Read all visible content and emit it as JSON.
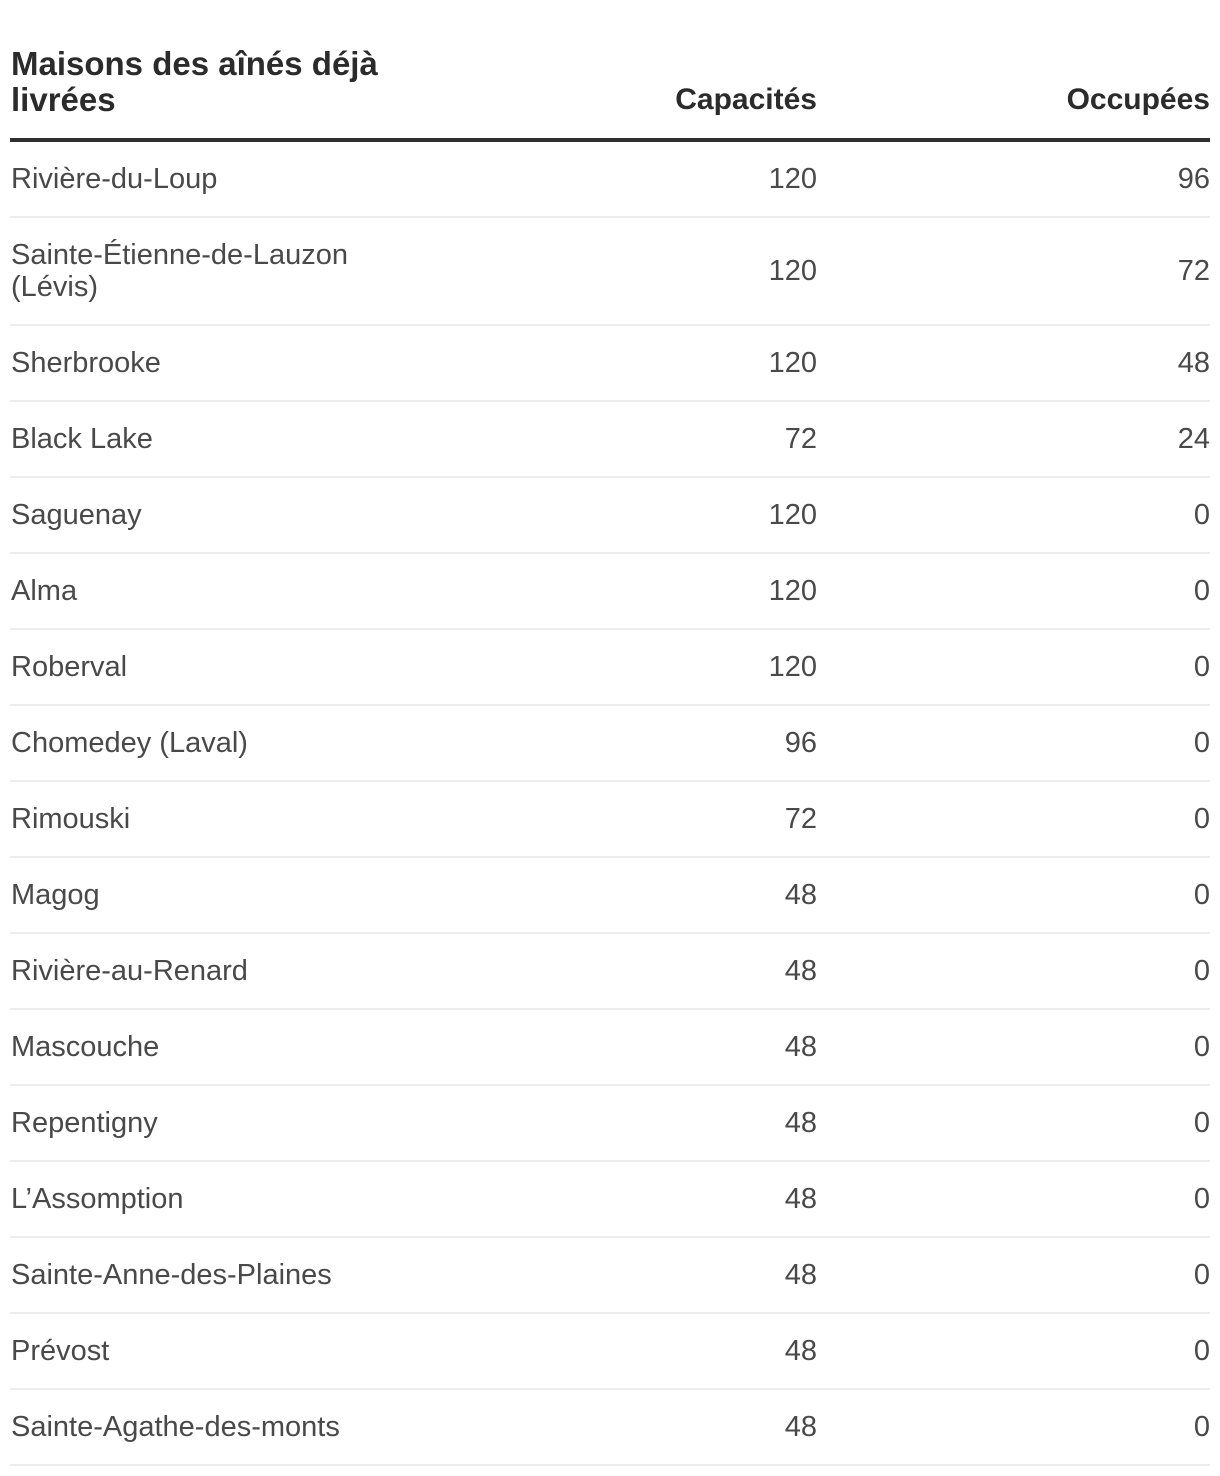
{
  "page": {
    "background": "#ffffff"
  },
  "colors": {
    "header_text": "#2b2b2b",
    "row_text": "#494949",
    "header_rule": "#2e2e2e",
    "row_divider": "#ededed"
  },
  "table": {
    "columns": [
      {
        "label": "Maisons des aînés déjà livrées",
        "align": "left"
      },
      {
        "label": "Capacités",
        "align": "right"
      },
      {
        "label": "Occupées",
        "align": "right"
      }
    ],
    "rows": [
      {
        "name": "Rivière-du-Loup",
        "capacites": "120",
        "occupees": "96"
      },
      {
        "name": "Sainte-Étienne-de-Lauzon (Lévis)",
        "capacites": "120",
        "occupees": "72"
      },
      {
        "name": "Sherbrooke",
        "capacites": "120",
        "occupees": "48"
      },
      {
        "name": "Black Lake",
        "capacites": "72",
        "occupees": "24"
      },
      {
        "name": "Saguenay",
        "capacites": "120",
        "occupees": "0"
      },
      {
        "name": "Alma",
        "capacites": "120",
        "occupees": "0"
      },
      {
        "name": "Roberval",
        "capacites": "120",
        "occupees": "0"
      },
      {
        "name": "Chomedey (Laval)",
        "capacites": "96",
        "occupees": "0"
      },
      {
        "name": "Rimouski",
        "capacites": "72",
        "occupees": "0"
      },
      {
        "name": "Magog",
        "capacites": "48",
        "occupees": "0"
      },
      {
        "name": "Rivière-au-Renard",
        "capacites": "48",
        "occupees": "0"
      },
      {
        "name": "Mascouche",
        "capacites": "48",
        "occupees": "0"
      },
      {
        "name": "Repentigny",
        "capacites": "48",
        "occupees": "0"
      },
      {
        "name": "L’Assomption",
        "capacites": "48",
        "occupees": "0"
      },
      {
        "name": "Sainte-Anne-des-Plaines",
        "capacites": "48",
        "occupees": "0"
      },
      {
        "name": "Prévost",
        "capacites": "48",
        "occupees": "0"
      },
      {
        "name": "Sainte-Agathe-des-monts",
        "capacites": "48",
        "occupees": "0"
      }
    ]
  },
  "chart_data": {
    "type": "table",
    "title": "Maisons des aînés déjà livrées",
    "columns": [
      "Maisons des aînés déjà livrées",
      "Capacités",
      "Occupées"
    ],
    "rows": [
      [
        "Rivière-du-Loup",
        120,
        96
      ],
      [
        "Sainte-Étienne-de-Lauzon (Lévis)",
        120,
        72
      ],
      [
        "Sherbrooke",
        120,
        48
      ],
      [
        "Black Lake",
        72,
        24
      ],
      [
        "Saguenay",
        120,
        0
      ],
      [
        "Alma",
        120,
        0
      ],
      [
        "Roberval",
        120,
        0
      ],
      [
        "Chomedey (Laval)",
        96,
        0
      ],
      [
        "Rimouski",
        72,
        0
      ],
      [
        "Magog",
        48,
        0
      ],
      [
        "Rivière-au-Renard",
        48,
        0
      ],
      [
        "Mascouche",
        48,
        0
      ],
      [
        "Repentigny",
        48,
        0
      ],
      [
        "L’Assomption",
        48,
        0
      ],
      [
        "Sainte-Anne-des-Plaines",
        48,
        0
      ],
      [
        "Prévost",
        48,
        0
      ],
      [
        "Sainte-Agathe-des-monts",
        48,
        0
      ]
    ]
  }
}
